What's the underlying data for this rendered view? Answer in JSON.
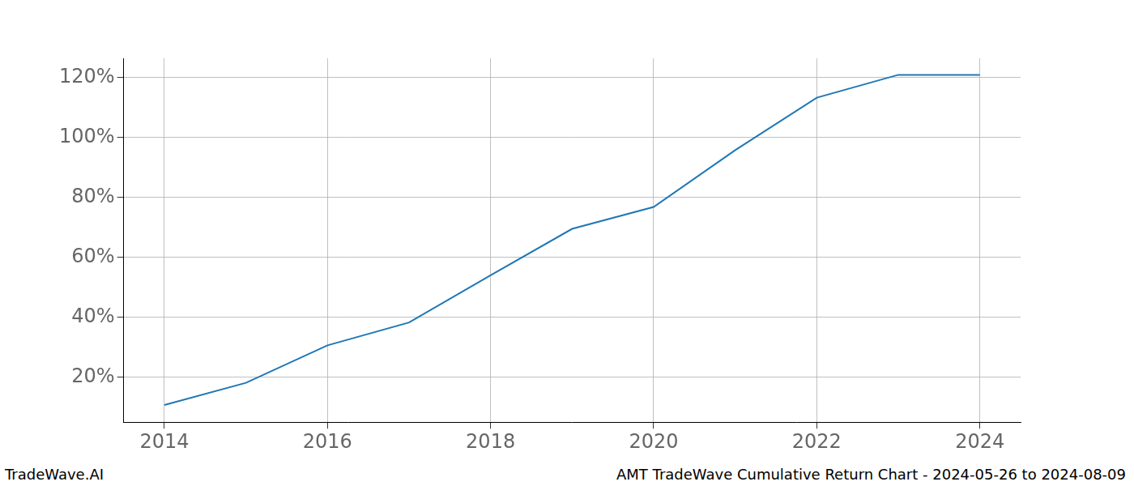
{
  "chart_data": {
    "type": "line",
    "title": "AMT TradeWave Cumulative Return Chart - 2024-05-26 to 2024-08-09",
    "annotation": "TradeWave.AI",
    "x": [
      2014,
      2015,
      2016,
      2017,
      2018,
      2019,
      2020,
      2021,
      2022,
      2023,
      2024
    ],
    "values": [
      10.8,
      18.2,
      30.7,
      38.3,
      54.0,
      69.5,
      76.8,
      95.7,
      113.2,
      120.8,
      120.8
    ],
    "color": "#1f77b4",
    "xlim": [
      2013.5,
      2024.5
    ],
    "xticks": [
      2014,
      2016,
      2018,
      2020,
      2022,
      2024
    ],
    "ylim": [
      5.1,
      126.3
    ],
    "yticks": [
      {
        "value": 20,
        "label": "20%"
      },
      {
        "value": 40,
        "label": "40%"
      },
      {
        "value": 60,
        "label": "60%"
      },
      {
        "value": 80,
        "label": "80%"
      },
      {
        "value": 100,
        "label": "100%"
      },
      {
        "value": 120,
        "label": "120%"
      }
    ],
    "grid": true
  }
}
